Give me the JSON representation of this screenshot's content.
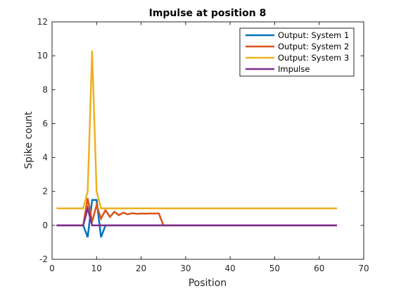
{
  "chart_data": {
    "type": "line",
    "title": "Impulse at position 8",
    "xlabel": "Position",
    "ylabel": "Spike count",
    "xlim": [
      0,
      70
    ],
    "ylim": [
      -2,
      12
    ],
    "xticks": [
      0,
      10,
      20,
      30,
      40,
      50,
      60,
      70
    ],
    "yticks": [
      -2,
      0,
      2,
      4,
      6,
      8,
      10,
      12
    ],
    "grid": false,
    "legend_position": "top-right",
    "series": [
      {
        "name": "Output: System 1",
        "color": "#0072BD",
        "x": [
          1,
          7,
          8,
          9,
          10,
          11,
          12,
          13,
          64
        ],
        "y": [
          0,
          0,
          -0.7,
          1.5,
          1.5,
          -0.7,
          0,
          0,
          0
        ]
      },
      {
        "name": "Output: System 2",
        "color": "#D95319",
        "x": [
          1,
          7,
          8,
          9,
          10,
          11,
          12,
          13,
          14,
          15,
          16,
          17,
          18,
          19,
          20,
          21,
          22,
          23,
          24,
          25,
          64
        ],
        "y": [
          0,
          0,
          1.6,
          0.2,
          1.2,
          0.4,
          0.9,
          0.5,
          0.8,
          0.6,
          0.75,
          0.65,
          0.72,
          0.68,
          0.7,
          0.69,
          0.7,
          0.7,
          0.7,
          0,
          0
        ]
      },
      {
        "name": "Output: System 3",
        "color": "#EDB120",
        "x": [
          1,
          7,
          8,
          9,
          10,
          11,
          12,
          64
        ],
        "y": [
          1,
          1,
          2,
          10.3,
          2,
          1,
          1,
          1
        ]
      },
      {
        "name": "Impulse",
        "color": "#7E2F8E",
        "x": [
          1,
          7,
          8,
          9,
          64
        ],
        "y": [
          0,
          0,
          1,
          0,
          0
        ]
      }
    ]
  }
}
